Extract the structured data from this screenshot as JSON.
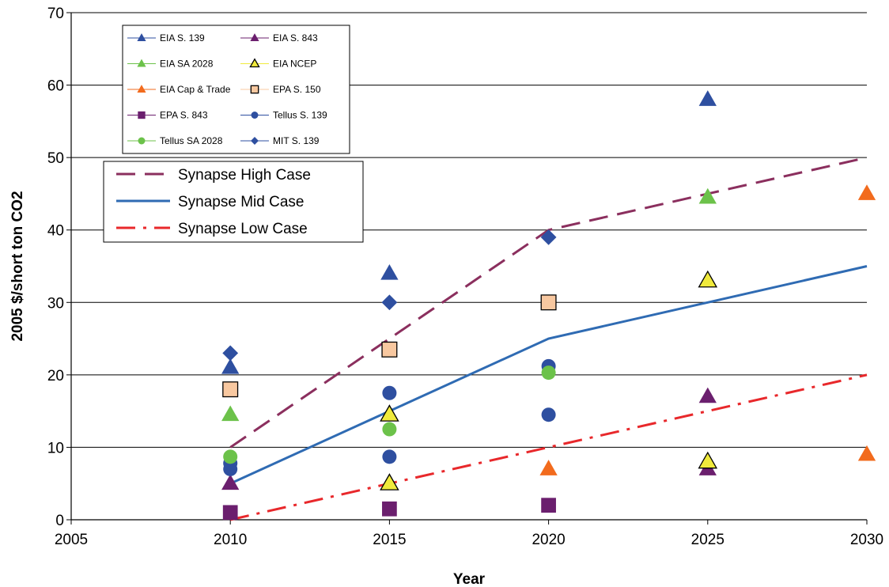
{
  "chart_data": {
    "type": "scatter",
    "title": "",
    "xlabel": "Year",
    "ylabel": "2005 $/short ton CO2",
    "xlim": [
      2005,
      2030
    ],
    "ylim": [
      0,
      70
    ],
    "xticks": [
      "2005",
      "2010",
      "2015",
      "2020",
      "2025",
      "2030"
    ],
    "yticks": [
      "0",
      "10",
      "20",
      "30",
      "40",
      "50",
      "60",
      "70"
    ],
    "grid": "horizontal",
    "legend_small_placement": "top-left",
    "legend_large_placement": "upper-left",
    "series": [
      {
        "name": "EIA S. 139",
        "marker": "triangle",
        "color": "#2E4FA0",
        "points": [
          [
            2010,
            21
          ],
          [
            2015,
            34
          ],
          [
            2025,
            58
          ]
        ]
      },
      {
        "name": "EIA S. 843",
        "marker": "triangle",
        "color": "#6B1F6E",
        "points": [
          [
            2010,
            5
          ],
          [
            2025,
            17
          ],
          [
            2025,
            7
          ]
        ]
      },
      {
        "name": "EIA SA 2028",
        "marker": "triangle",
        "color": "#6CC24A",
        "points": [
          [
            2010,
            14.5
          ],
          [
            2025,
            44.5
          ]
        ]
      },
      {
        "name": "EIA NCEP",
        "marker": "triangle",
        "color": "#F0EA3C",
        "outline": "#000000",
        "points": [
          [
            2015,
            5
          ],
          [
            2015,
            14.5
          ],
          [
            2025,
            8
          ],
          [
            2025,
            33
          ]
        ]
      },
      {
        "name": "EIA Cap & Trade",
        "marker": "triangle",
        "color": "#F26B1D",
        "points": [
          [
            2020,
            7
          ],
          [
            2030,
            45
          ],
          [
            2030,
            9
          ]
        ]
      },
      {
        "name": "EPA S. 150",
        "marker": "square",
        "color": "#F8C8A0",
        "outline": "#000000",
        "points": [
          [
            2010,
            18
          ],
          [
            2015,
            23.5
          ],
          [
            2020,
            30
          ]
        ]
      },
      {
        "name": "EPA S. 843",
        "marker": "square",
        "color": "#6B1F6E",
        "points": [
          [
            2010,
            1
          ],
          [
            2015,
            1.5
          ],
          [
            2020,
            2
          ]
        ]
      },
      {
        "name": "Tellus S. 139",
        "marker": "circle",
        "color": "#2E4FA0",
        "points": [
          [
            2010,
            7
          ],
          [
            2010,
            7.8
          ],
          [
            2015,
            8.7
          ],
          [
            2015,
            17.5
          ],
          [
            2020,
            14.5
          ],
          [
            2020,
            21.2
          ]
        ]
      },
      {
        "name": "Tellus SA 2028",
        "marker": "circle",
        "color": "#6CC24A",
        "points": [
          [
            2010,
            8.7
          ],
          [
            2015,
            12.5
          ],
          [
            2020,
            20.3
          ]
        ]
      },
      {
        "name": "MIT S. 139",
        "marker": "diamond",
        "color": "#2E4FA0",
        "points": [
          [
            2010,
            23
          ],
          [
            2015,
            30
          ],
          [
            2020,
            39
          ]
        ]
      }
    ],
    "lines": [
      {
        "name": "Synapse High Case",
        "style": "dashed",
        "color": "#8B2F5E",
        "x": [
          2010,
          2015,
          2020,
          2025,
          2030
        ],
        "y": [
          10,
          25,
          40,
          45,
          50
        ]
      },
      {
        "name": "Synapse Mid Case",
        "style": "solid",
        "color": "#2F6BB3",
        "x": [
          2010,
          2015,
          2020,
          2025,
          2030
        ],
        "y": [
          5,
          15,
          25,
          30,
          35
        ]
      },
      {
        "name": "Synapse Low Case",
        "style": "dashdot",
        "color": "#E8282B",
        "x": [
          2010,
          2015,
          2020,
          2025,
          2030
        ],
        "y": [
          0,
          5,
          10,
          15,
          20
        ]
      }
    ]
  }
}
